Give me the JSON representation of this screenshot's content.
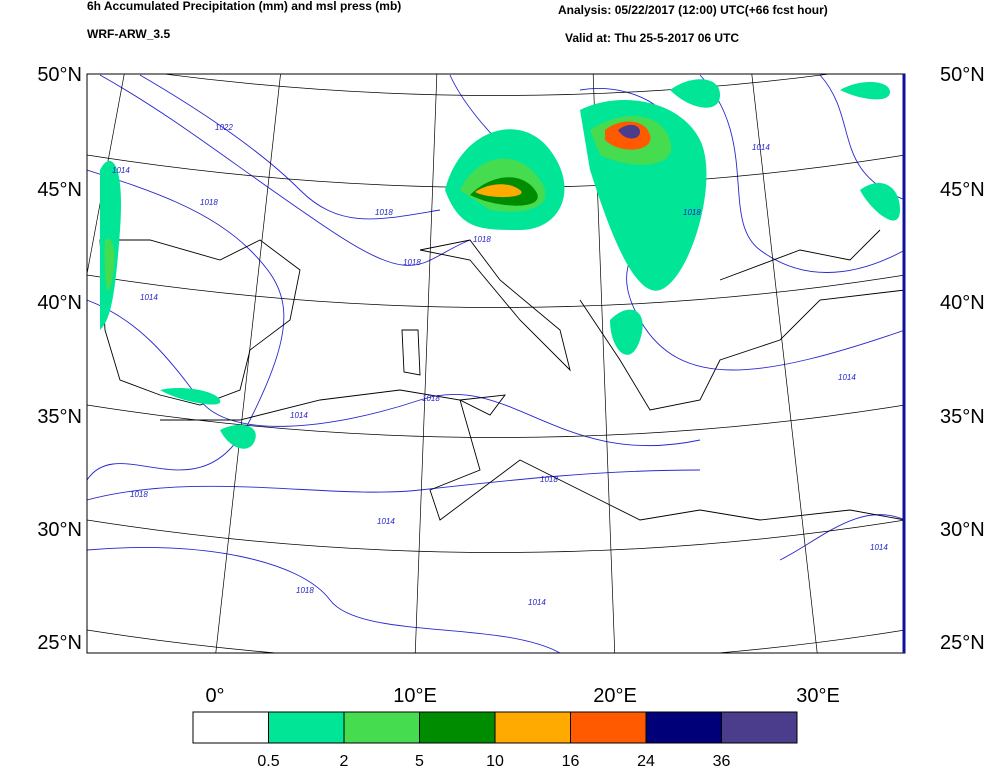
{
  "header": {
    "title": "6h Accumulated Precipitation (mm) and msl press (mb)",
    "model": "WRF-ARW_3.5",
    "analysis": "Analysis: 05/22/2017 (12:00) UTC(+66 fcst hour)",
    "valid": "Valid at: Thu 25-5-2017 06 UTC"
  },
  "lat_labels": [
    "50°N",
    "45°N",
    "40°N",
    "35°N",
    "30°N",
    "25°N"
  ],
  "lon_labels": [
    "0°",
    "10°E",
    "20°E",
    "30°E"
  ],
  "isobar_labels": [
    "1022",
    "1018",
    "1014",
    "1018",
    "1014",
    "1018",
    "1018",
    "1018",
    "1014",
    "1018",
    "1018",
    "1014",
    "1014",
    "1018",
    "1014",
    "1014",
    "1018",
    "1014"
  ],
  "colorbar": {
    "colors": [
      "#ffffff",
      "#00e696",
      "#46dc50",
      "#008c00",
      "#ffaa00",
      "#ff5a00",
      "#000078",
      "#4b3c8c"
    ],
    "labels": [
      "0.5",
      "2",
      "5",
      "10",
      "16",
      "24",
      "36"
    ]
  }
}
